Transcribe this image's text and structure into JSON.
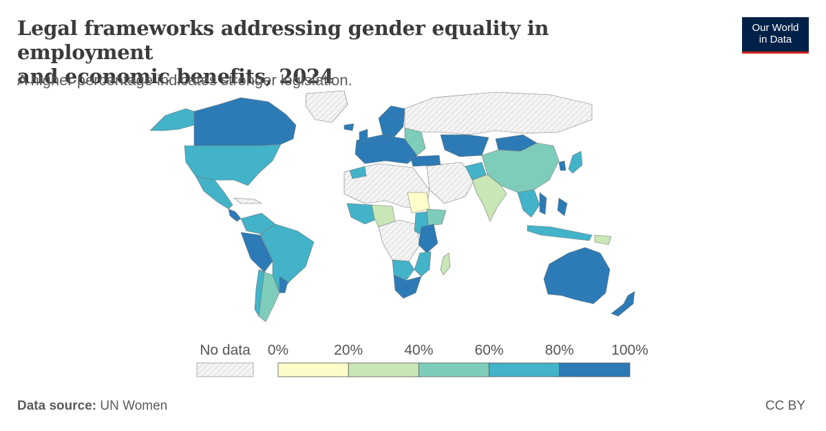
{
  "header": {
    "title_line1": "Legal frameworks addressing gender equality in employment",
    "title_line2": "and economic benefits, 2024",
    "subtitle": "A higher percentage indicates stronger legislation."
  },
  "logo": {
    "line1": "Our World",
    "line2": "in Data"
  },
  "legend": {
    "no_data_label": "No data",
    "tick_labels": [
      "0%",
      "20%",
      "40%",
      "60%",
      "80%",
      "100%"
    ],
    "bins": [
      {
        "from": 0,
        "to": 20,
        "color": "#fdfdc9"
      },
      {
        "from": 20,
        "to": 40,
        "color": "#c8e6b6"
      },
      {
        "from": 40,
        "to": 60,
        "color": "#7ecdbb"
      },
      {
        "from": 60,
        "to": 80,
        "color": "#42b3c8"
      },
      {
        "from": 80,
        "to": 100,
        "color": "#2c7bb6"
      }
    ]
  },
  "footer": {
    "source_label": "Data source:",
    "source_value": "UN Women",
    "license": "CC BY"
  },
  "colors": {
    "bin1": "#fdfdc9",
    "bin2": "#c8e6b6",
    "bin3": "#7ecdbb",
    "bin4": "#42b3c8",
    "bin5": "#2c7bb6",
    "no_data": "#e6e6e6",
    "brand_navy": "#002147",
    "brand_red": "#ce261e"
  }
}
